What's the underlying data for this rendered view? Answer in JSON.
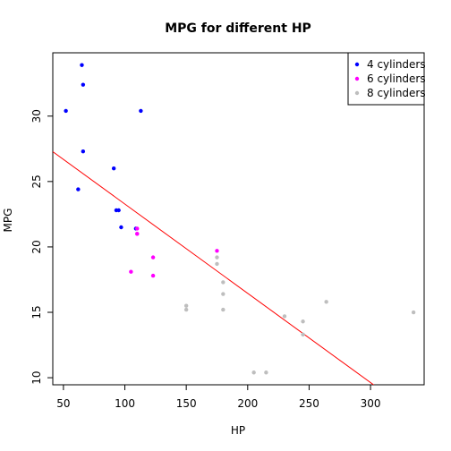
{
  "chart_data": {
    "type": "scatter",
    "title": "MPG for different HP",
    "xlabel": "HP",
    "ylabel": "MPG",
    "xlim": [
      41.34,
      343.66
    ],
    "ylim": [
      9.46,
      34.84
    ],
    "x_ticks": [
      50,
      100,
      150,
      200,
      250,
      300
    ],
    "y_ticks": [
      10,
      15,
      20,
      25,
      30
    ],
    "grid": false,
    "legend_position": "top-right",
    "series": [
      {
        "name": "4 cylinders",
        "color": "#0000ff",
        "points": [
          [
            93,
            22.8
          ],
          [
            62,
            24.4
          ],
          [
            95,
            22.8
          ],
          [
            66,
            32.4
          ],
          [
            52,
            30.4
          ],
          [
            65,
            33.9
          ],
          [
            97,
            21.5
          ],
          [
            66,
            27.3
          ],
          [
            91,
            26.0
          ],
          [
            113,
            30.4
          ],
          [
            109,
            21.4
          ]
        ]
      },
      {
        "name": "6 cylinders",
        "color": "#ff00ff",
        "points": [
          [
            110,
            21.0
          ],
          [
            110,
            21.0
          ],
          [
            110,
            21.4
          ],
          [
            105,
            18.1
          ],
          [
            123,
            19.2
          ],
          [
            123,
            17.8
          ],
          [
            175,
            19.7
          ]
        ]
      },
      {
        "name": "8 cylinders",
        "color": "#bebebe",
        "points": [
          [
            175,
            18.7
          ],
          [
            245,
            14.3
          ],
          [
            180,
            16.4
          ],
          [
            180,
            17.3
          ],
          [
            180,
            15.2
          ],
          [
            205,
            10.4
          ],
          [
            215,
            10.4
          ],
          [
            230,
            14.7
          ],
          [
            150,
            15.5
          ],
          [
            150,
            15.2
          ],
          [
            245,
            13.3
          ],
          [
            175,
            19.2
          ],
          [
            264,
            15.8
          ],
          [
            335,
            15.0
          ]
        ]
      }
    ],
    "regression_line": {
      "color": "#ff0000",
      "intercept": 30.09886,
      "slope": -0.06823
    }
  }
}
